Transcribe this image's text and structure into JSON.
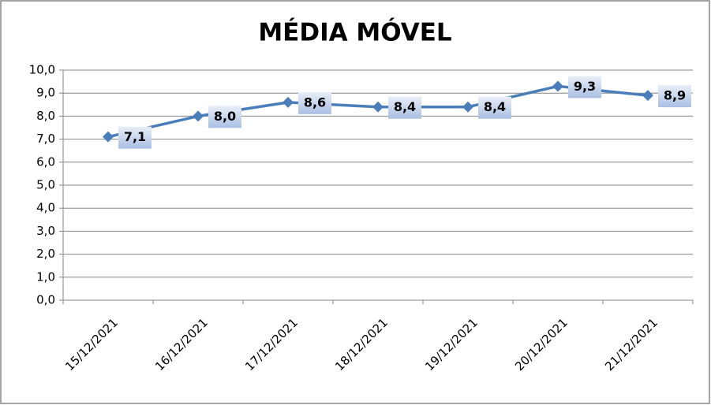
{
  "chart_data": {
    "type": "line",
    "title": "MÉDIA MÓVEL",
    "categories": [
      "15/12/2021",
      "16/12/2021",
      "17/12/2021",
      "18/12/2021",
      "19/12/2021",
      "20/12/2021",
      "21/12/2021"
    ],
    "values": [
      7.1,
      8.0,
      8.6,
      8.4,
      8.4,
      9.3,
      8.9
    ],
    "value_labels": [
      "7,1",
      "8,0",
      "8,6",
      "8,4",
      "8,4",
      "9,3",
      "8,9"
    ],
    "color": "#4a7ebb",
    "ylim": [
      0,
      10
    ],
    "yticks": [
      {
        "value": 0,
        "label": "0,0"
      },
      {
        "value": 1,
        "label": "1,0"
      },
      {
        "value": 2,
        "label": "2,0"
      },
      {
        "value": 3,
        "label": "3,0"
      },
      {
        "value": 4,
        "label": "4,0"
      },
      {
        "value": 5,
        "label": "5,0"
      },
      {
        "value": 6,
        "label": "6,0"
      },
      {
        "value": 7,
        "label": "7,0"
      },
      {
        "value": 8,
        "label": "8,0"
      },
      {
        "value": 9,
        "label": "9,0"
      },
      {
        "value": 10,
        "label": "10,0"
      }
    ],
    "grid": true
  }
}
